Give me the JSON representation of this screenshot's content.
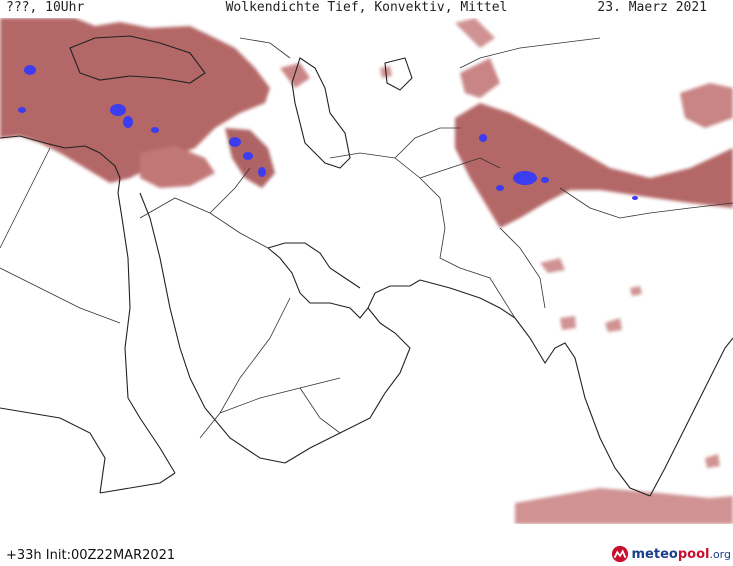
{
  "header": {
    "left": "???, 10Uhr",
    "title": "Wolkendichte   Tief, Konvektiv, Mittel",
    "date": "23. Maerz 2021"
  },
  "footer": {
    "run_info": "+33h Init:00Z22MAR2021",
    "brand_part1": "meteo",
    "brand_part2": "pool",
    "brand_part3": ".org"
  },
  "colors": {
    "cloud": "#a04848",
    "cloud_light": "#c88080",
    "convective": "#3c3cf0",
    "border": "#222222"
  }
}
